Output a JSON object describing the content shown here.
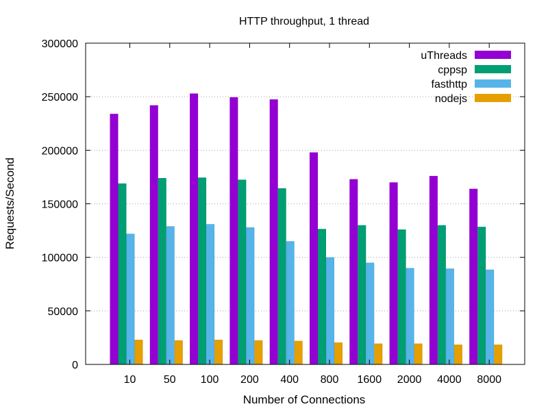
{
  "chart_data": {
    "type": "bar",
    "title": "HTTP throughput, 1 thread",
    "xlabel": "Number of Connections",
    "ylabel": "Requests/Second",
    "ylim": [
      0,
      300000
    ],
    "yticks": [
      0,
      50000,
      100000,
      150000,
      200000,
      250000,
      300000
    ],
    "grid": "horizontal dotted",
    "legend_position": "top-right",
    "categories": [
      "10",
      "50",
      "100",
      "200",
      "400",
      "800",
      "1600",
      "2000",
      "4000",
      "8000"
    ],
    "series": [
      {
        "name": "uThreads",
        "color": "#9400d3",
        "values": [
          234000,
          242000,
          253000,
          249500,
          247500,
          198000,
          173000,
          170000,
          176000,
          164000
        ]
      },
      {
        "name": "cppsp",
        "color": "#009e73",
        "values": [
          169000,
          174000,
          174500,
          172500,
          164500,
          126500,
          130000,
          126000,
          130000,
          128500
        ]
      },
      {
        "name": "fasthttp",
        "color": "#56b4e9",
        "values": [
          122000,
          129000,
          131000,
          128000,
          115000,
          100000,
          95000,
          90000,
          89500,
          88500
        ]
      },
      {
        "name": "nodejs",
        "color": "#e69f00",
        "values": [
          23000,
          22500,
          23000,
          22500,
          22000,
          20500,
          19500,
          19500,
          18500,
          18500
        ]
      }
    ]
  }
}
